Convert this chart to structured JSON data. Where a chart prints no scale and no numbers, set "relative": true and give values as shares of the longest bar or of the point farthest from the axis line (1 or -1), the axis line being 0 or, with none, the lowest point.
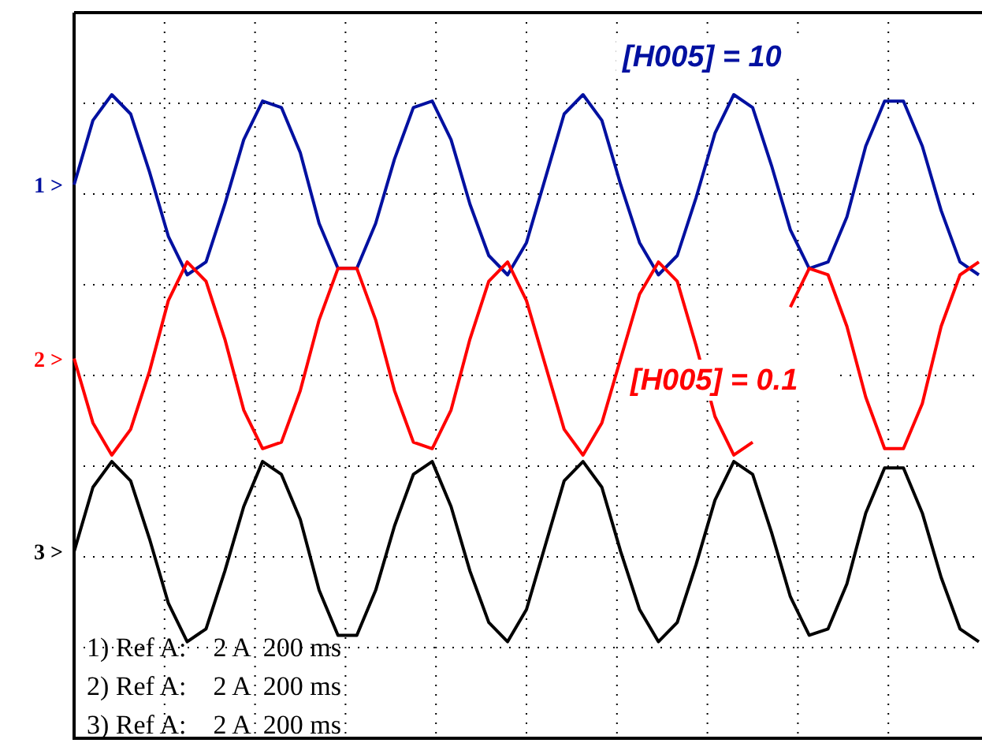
{
  "chart_data": {
    "type": "line",
    "relative": true,
    "grid": true,
    "line_style": "solid",
    "categories": [
      null,
      null,
      null,
      null,
      null,
      null,
      null,
      null,
      null,
      null,
      null,
      null,
      null,
      null,
      null,
      null,
      null,
      null,
      null,
      null,
      null,
      null,
      null,
      null,
      null,
      null,
      null,
      null,
      null,
      null,
      null,
      null,
      null,
      null,
      null,
      null,
      null,
      null,
      null,
      null,
      null,
      null,
      null,
      null,
      null,
      null,
      null,
      null,
      null
    ],
    "series": [
      {
        "name": "1 >",
        "color": "#0010a0",
        "values": [
          0.86,
          0.96,
          1.0,
          0.97,
          0.88,
          0.78,
          0.72,
          0.74,
          0.83,
          0.93,
          0.99,
          0.98,
          0.91,
          0.8,
          0.73,
          0.73,
          0.8,
          0.9,
          0.98,
          0.99,
          0.93,
          0.83,
          0.75,
          0.72,
          0.77,
          0.87,
          0.97,
          1.0,
          0.96,
          0.86,
          0.77,
          0.72,
          0.75,
          0.84,
          0.94,
          1.0,
          0.98,
          0.89,
          0.79,
          0.73,
          0.74,
          0.81,
          0.92,
          0.99,
          0.99,
          0.92,
          0.82,
          0.74,
          0.72
        ]
      },
      {
        "name": "2 >",
        "color": "#ff0000",
        "values": [
          0.59,
          0.49,
          0.44,
          0.48,
          0.57,
          0.68,
          0.74,
          0.71,
          0.62,
          0.51,
          0.45,
          0.46,
          0.54,
          0.65,
          0.73,
          0.73,
          0.65,
          0.54,
          0.46,
          0.45,
          0.51,
          0.62,
          0.71,
          0.74,
          0.68,
          0.58,
          0.48,
          0.44,
          0.49,
          0.59,
          0.69,
          0.74,
          0.71,
          0.61,
          0.5,
          0.44,
          0.46,
          null,
          0.67,
          0.73,
          0.72,
          0.64,
          0.53,
          0.45,
          0.45,
          0.52,
          0.64,
          0.72,
          0.74
        ]
      },
      {
        "name": "3 >",
        "color": "#000000",
        "values": [
          0.29,
          0.39,
          0.43,
          0.4,
          0.31,
          0.21,
          0.15,
          0.17,
          0.26,
          0.36,
          0.43,
          0.41,
          0.34,
          0.23,
          0.16,
          0.16,
          0.23,
          0.33,
          0.41,
          0.43,
          0.36,
          0.26,
          0.18,
          0.15,
          0.2,
          0.3,
          0.4,
          0.43,
          0.39,
          0.29,
          0.2,
          0.15,
          0.18,
          0.27,
          0.37,
          0.43,
          0.41,
          0.32,
          0.22,
          0.16,
          0.17,
          0.24,
          0.35,
          0.42,
          0.42,
          0.35,
          0.25,
          0.17,
          0.15
        ]
      }
    ],
    "annotations": [
      "[H005] = 10",
      "[H005] = 0.1",
      "1) Ref A:    2 A  200 ms",
      "2) Ref A:    2 A  200 ms",
      "3) Ref A:    2 A  200 ms"
    ]
  }
}
